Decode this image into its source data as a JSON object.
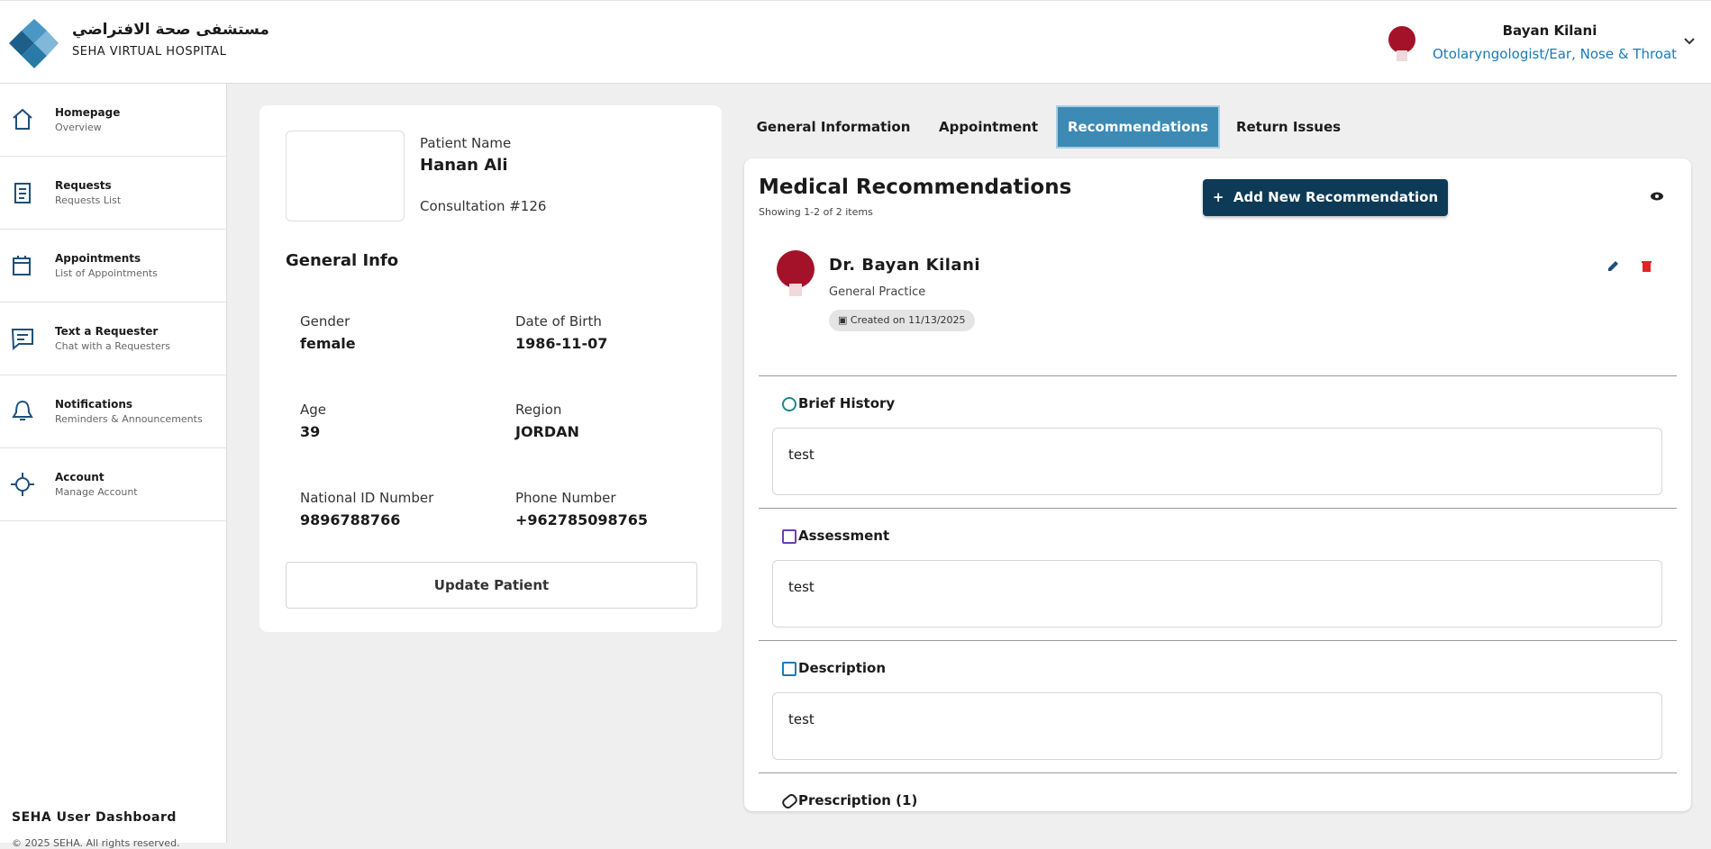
{
  "header": {
    "logo_arabic": "مستشفى صحة الافتراضي",
    "logo_english": "SEHA VIRTUAL HOSPITAL",
    "user_name": "Bayan Kilani",
    "user_role": "Otolaryngologist/Ear, Nose & Throat"
  },
  "sidebar": {
    "items": [
      {
        "title": "Homepage",
        "subtitle": "Overview"
      },
      {
        "title": "Requests",
        "subtitle": "Requests List"
      },
      {
        "title": "Appointments",
        "subtitle": "List of Appointments"
      },
      {
        "title": "Text a Requester",
        "subtitle": "Chat with a Requesters"
      },
      {
        "title": "Notifications",
        "subtitle": "Reminders & Announcements"
      },
      {
        "title": "Account",
        "subtitle": "Manage Account"
      }
    ],
    "footer_title": "SEHA User Dashboard",
    "copyright": "© 2025 SEHA. All rights reserved."
  },
  "patient": {
    "name_label": "Patient Name",
    "name": "Hanan Ali",
    "consultation": "Consultation #126",
    "general_info_title": "General Info",
    "fields": [
      {
        "label": "Gender",
        "value": "female"
      },
      {
        "label": "Date of Birth",
        "value": "1986-11-07"
      },
      {
        "label": "Age",
        "value": "39"
      },
      {
        "label": "Region",
        "value": "JORDAN"
      },
      {
        "label": "National ID Number",
        "value": "9896788766"
      },
      {
        "label": "Phone Number",
        "value": "+962785098765"
      }
    ],
    "update_button": "Update Patient"
  },
  "tabs": {
    "items": [
      "General Information",
      "Appointment",
      "Recommendations",
      "Return Issues"
    ],
    "active": 2
  },
  "recommendations": {
    "title": "Medical Recommendations",
    "showing": "Showing 1-2 of 2 items",
    "add_button": "Add New Recommendation",
    "doctor_name": "Dr. Bayan Kilani",
    "specialty": "General Practice",
    "created": "Created on 11/13/2025",
    "sections": [
      {
        "title": "Brief History",
        "content": "test"
      },
      {
        "title": "Assessment",
        "content": "test"
      },
      {
        "title": "Description",
        "content": "test"
      }
    ],
    "last_section": "Prescription (1)"
  }
}
